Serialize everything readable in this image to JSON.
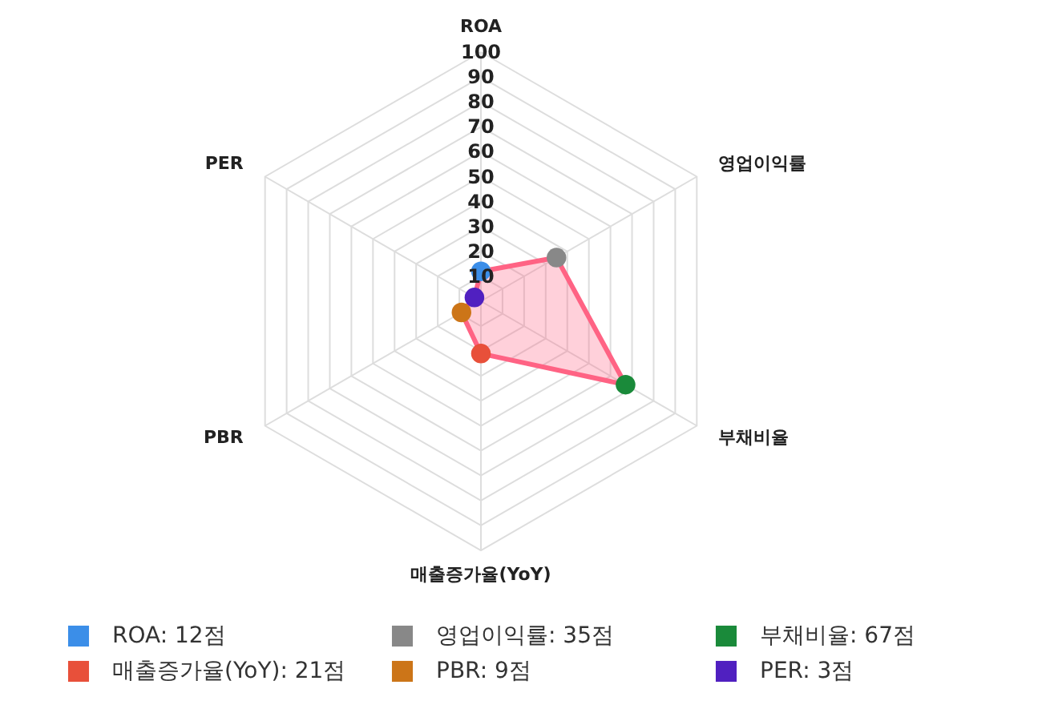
{
  "chart_data": {
    "type": "radar",
    "categories": [
      "ROA",
      "영업이익률",
      "부채비율",
      "매출증가율(YoY)",
      "PBR",
      "PER"
    ],
    "series": [
      {
        "color": "#ff6384",
        "colors": [
          "#3b8ee8",
          "#888888",
          "#1a8a3a",
          "#e8503a",
          "#cc7518",
          "#5020c0"
        ],
        "values": [
          12,
          35,
          67,
          21,
          9,
          3
        ]
      }
    ],
    "annotations": [
      "ROA: 12점",
      "영업이익률: 35점",
      "부채비율: 67점",
      "매출증가율(YoY): 21점",
      "PBR: 9점",
      "PER: 3점"
    ],
    "ylim": [
      0,
      100
    ],
    "yticks": [
      10,
      20,
      30,
      40,
      50,
      60,
      70,
      80,
      90,
      100
    ],
    "grid": true,
    "marker": "circle"
  }
}
